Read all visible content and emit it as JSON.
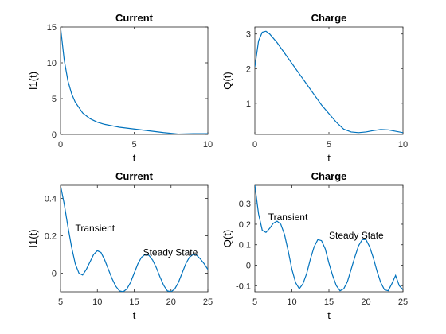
{
  "chart_data": [
    {
      "type": "line",
      "title": "Current",
      "xlabel": "t",
      "ylabel": "I1(t)",
      "xlim": [
        0,
        10
      ],
      "ylim": [
        0,
        15
      ],
      "xticks": [
        0,
        5,
        10
      ],
      "yticks": [
        0,
        5,
        10,
        15
      ],
      "grid": false,
      "color": "#0072BD",
      "x": [
        0,
        0.25,
        0.5,
        0.75,
        1,
        1.5,
        2,
        2.5,
        3,
        3.5,
        4,
        5,
        6,
        7,
        8,
        9,
        10
      ],
      "y": [
        15,
        10.4,
        7.5,
        5.7,
        4.5,
        3.0,
        2.2,
        1.7,
        1.4,
        1.2,
        1.0,
        0.75,
        0.5,
        0.25,
        0.05,
        0.1,
        0.1
      ],
      "annotations": []
    },
    {
      "type": "line",
      "title": "Charge",
      "xlabel": "t",
      "ylabel": "Q(t)",
      "xlim": [
        0,
        10
      ],
      "ylim": [
        0.1,
        3.2
      ],
      "xticks": [
        0,
        5,
        10
      ],
      "yticks": [
        1,
        2,
        3
      ],
      "grid": false,
      "color": "#0072BD",
      "x": [
        0,
        0.25,
        0.5,
        0.75,
        1,
        1.5,
        2,
        2.5,
        3,
        3.5,
        4,
        4.5,
        5,
        5.5,
        6,
        6.5,
        7,
        7.5,
        8,
        8.5,
        9,
        9.5,
        10
      ],
      "y": [
        2.05,
        2.8,
        3.05,
        3.08,
        3.0,
        2.75,
        2.45,
        2.15,
        1.85,
        1.55,
        1.25,
        0.95,
        0.7,
        0.45,
        0.25,
        0.17,
        0.15,
        0.17,
        0.21,
        0.24,
        0.23,
        0.19,
        0.15
      ],
      "annotations": []
    },
    {
      "type": "line",
      "title": "Current",
      "xlabel": "t",
      "ylabel": "I1(t)",
      "xlim": [
        5,
        25
      ],
      "ylim": [
        -0.1,
        0.47
      ],
      "xticks": [
        5,
        10,
        15,
        20,
        25
      ],
      "yticks": [
        0,
        0.2,
        0.4
      ],
      "grid": false,
      "color": "#0072BD",
      "x": [
        5,
        5.5,
        6,
        6.5,
        7,
        7.5,
        8,
        8.5,
        9,
        9.5,
        10,
        10.5,
        11,
        11.5,
        12,
        12.5,
        13,
        13.5,
        14,
        14.5,
        15,
        15.5,
        16,
        16.5,
        17,
        17.5,
        18,
        18.5,
        19,
        19.5,
        20,
        20.5,
        21,
        21.5,
        22,
        22.5,
        23,
        23.5,
        24,
        24.5,
        25
      ],
      "y": [
        0.47,
        0.37,
        0.25,
        0.14,
        0.05,
        0.0,
        -0.01,
        0.02,
        0.06,
        0.1,
        0.12,
        0.11,
        0.07,
        0.02,
        -0.03,
        -0.07,
        -0.095,
        -0.1,
        -0.085,
        -0.05,
        0.0,
        0.05,
        0.085,
        0.1,
        0.095,
        0.07,
        0.03,
        -0.02,
        -0.065,
        -0.095,
        -0.1,
        -0.085,
        -0.05,
        0.0,
        0.05,
        0.085,
        0.1,
        0.095,
        0.075,
        0.05,
        0.02
      ],
      "annotations": [
        {
          "text": "Transient",
          "x": 7.0,
          "y": 0.24
        },
        {
          "text": "Steady State",
          "x": 16.2,
          "y": 0.11
        }
      ]
    },
    {
      "type": "line",
      "title": "Charge",
      "xlabel": "t",
      "ylabel": "Q(t)",
      "xlim": [
        5,
        25
      ],
      "ylim": [
        -0.13,
        0.39
      ],
      "xticks": [
        5,
        10,
        15,
        20,
        25
      ],
      "yticks": [
        -0.1,
        0,
        0.1,
        0.2,
        0.3
      ],
      "grid": false,
      "color": "#0072BD",
      "x": [
        5,
        5.5,
        6,
        6.5,
        7,
        7.5,
        8,
        8.5,
        9,
        9.5,
        10,
        10.5,
        11,
        11.5,
        12,
        12.5,
        13,
        13.5,
        14,
        14.5,
        15,
        15.5,
        16,
        16.5,
        17,
        17.5,
        18,
        18.5,
        19,
        19.5,
        20,
        20.5,
        21,
        21.5,
        22,
        22.5,
        23,
        23.5,
        24,
        24.5,
        25
      ],
      "y": [
        0.39,
        0.25,
        0.17,
        0.16,
        0.18,
        0.205,
        0.215,
        0.2,
        0.15,
        0.07,
        -0.02,
        -0.085,
        -0.115,
        -0.09,
        -0.04,
        0.03,
        0.09,
        0.125,
        0.12,
        0.08,
        0.01,
        -0.05,
        -0.1,
        -0.125,
        -0.115,
        -0.08,
        -0.02,
        0.04,
        0.095,
        0.125,
        0.125,
        0.09,
        0.035,
        -0.03,
        -0.085,
        -0.12,
        -0.125,
        -0.09,
        -0.05,
        -0.1,
        -0.12
      ],
      "annotations": [
        {
          "text": "Transient",
          "x": 6.8,
          "y": 0.235
        },
        {
          "text": "Steady State",
          "x": 15.0,
          "y": 0.145
        }
      ]
    }
  ]
}
